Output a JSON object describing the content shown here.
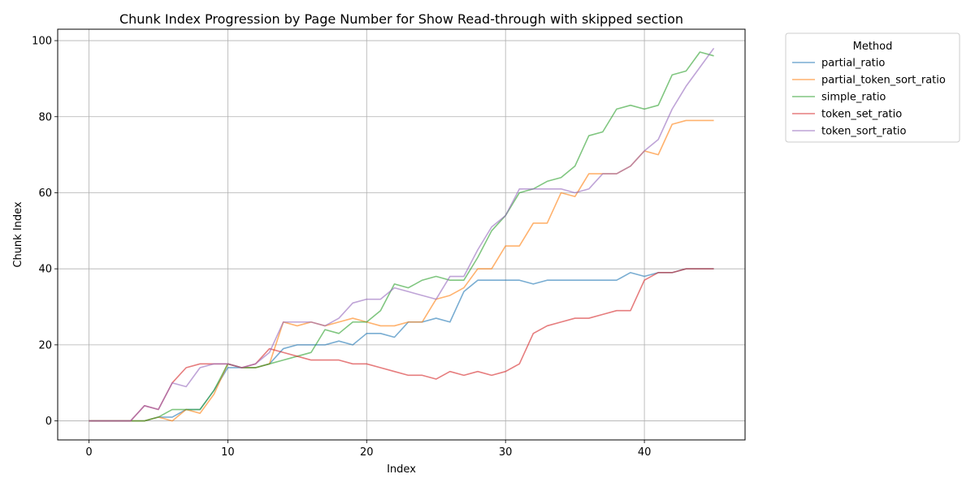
{
  "chart_data": {
    "type": "line",
    "title": "Chunk Index Progression by Page Number for Show Read-through with skipped section",
    "xlabel": "Index",
    "ylabel": "Chunk Index",
    "xlim": [
      -2.25,
      47.25
    ],
    "ylim": [
      -5,
      103
    ],
    "xticks": [
      0,
      10,
      20,
      30,
      40
    ],
    "yticks": [
      0,
      20,
      40,
      60,
      80,
      100
    ],
    "grid": true,
    "legend": {
      "title": "Method",
      "placement": "outside-right-top"
    },
    "x": [
      0,
      1,
      2,
      3,
      4,
      5,
      6,
      7,
      8,
      9,
      10,
      11,
      12,
      13,
      14,
      15,
      16,
      17,
      18,
      19,
      20,
      21,
      22,
      23,
      24,
      25,
      26,
      27,
      28,
      29,
      30,
      31,
      32,
      33,
      34,
      35,
      36,
      37,
      38,
      39,
      40,
      41,
      42,
      43,
      44,
      45
    ],
    "series": [
      {
        "name": "partial_ratio",
        "color": "#1f77b4",
        "values": [
          0,
          0,
          0,
          0,
          0,
          1,
          1,
          3,
          3,
          8,
          14,
          14,
          14,
          15,
          19,
          20,
          20,
          20,
          21,
          20,
          23,
          23,
          22,
          26,
          26,
          27,
          26,
          34,
          37,
          37,
          37,
          37,
          36,
          37,
          37,
          37,
          37,
          37,
          37,
          39,
          38,
          39,
          39,
          40,
          40,
          40
        ]
      },
      {
        "name": "partial_token_sort_ratio",
        "color": "#ff7f0e",
        "values": [
          0,
          0,
          0,
          0,
          0,
          1,
          0,
          3,
          2,
          7,
          15,
          14,
          14,
          15,
          26,
          25,
          26,
          25,
          26,
          27,
          26,
          25,
          25,
          26,
          26,
          32,
          33,
          35,
          40,
          40,
          46,
          46,
          52,
          52,
          60,
          59,
          65,
          65,
          65,
          67,
          71,
          70,
          78,
          79,
          79,
          79
        ]
      },
      {
        "name": "simple_ratio",
        "color": "#2ca02c",
        "values": [
          0,
          0,
          0,
          0,
          0,
          1,
          3,
          3,
          3,
          8,
          15,
          14,
          14,
          15,
          16,
          17,
          18,
          24,
          23,
          26,
          26,
          29,
          36,
          35,
          37,
          38,
          37,
          37,
          43,
          50,
          54,
          60,
          61,
          63,
          64,
          67,
          75,
          76,
          82,
          83,
          82,
          83,
          91,
          92,
          97,
          96
        ]
      },
      {
        "name": "token_set_ratio",
        "color": "#d62728",
        "values": [
          0,
          0,
          0,
          0,
          4,
          3,
          10,
          14,
          15,
          15,
          15,
          14,
          15,
          19,
          18,
          17,
          16,
          16,
          16,
          15,
          15,
          14,
          13,
          12,
          12,
          11,
          13,
          12,
          13,
          12,
          13,
          15,
          23,
          25,
          26,
          27,
          27,
          28,
          29,
          29,
          37,
          39,
          39,
          40,
          40,
          40
        ]
      },
      {
        "name": "token_sort_ratio",
        "color": "#9467bd",
        "values": [
          0,
          0,
          0,
          0,
          4,
          3,
          10,
          9,
          14,
          15,
          15,
          14,
          15,
          18,
          26,
          26,
          26,
          25,
          27,
          31,
          32,
          32,
          35,
          34,
          33,
          32,
          38,
          38,
          45,
          51,
          54,
          61,
          61,
          61,
          61,
          60,
          61,
          65,
          65,
          67,
          71,
          74,
          82,
          88,
          93,
          98
        ]
      }
    ]
  }
}
